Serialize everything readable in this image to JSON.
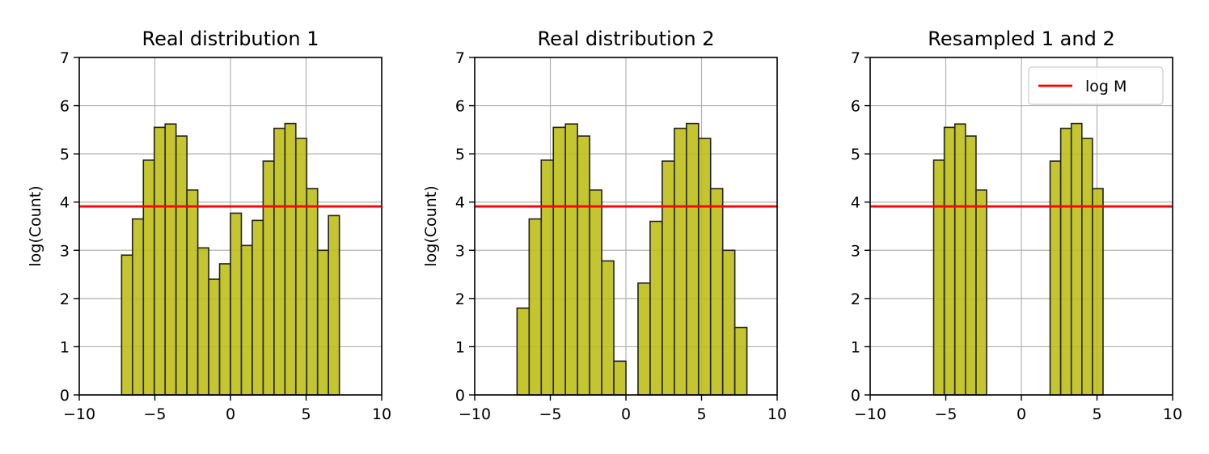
{
  "chart_data": [
    {
      "type": "bar",
      "title": "Real distribution 1",
      "xlabel": "",
      "ylabel": "log(Count)",
      "xlim": [
        -10,
        10
      ],
      "ylim": [
        0,
        7
      ],
      "xticks": [
        -10,
        -5,
        0,
        5,
        10
      ],
      "xtick_labels": [
        "−10",
        "−5",
        "0",
        "5",
        "10"
      ],
      "yticks": [
        0,
        1,
        2,
        3,
        4,
        5,
        6,
        7
      ],
      "ytick_labels": [
        "0",
        "1",
        "2",
        "3",
        "4",
        "5",
        "6",
        "7"
      ],
      "grid": true,
      "bar_color": "#bfbf18",
      "bar_edge_color": "#222222",
      "bins": {
        "start": -7.2,
        "width": 0.72,
        "values": [
          2.9,
          3.65,
          4.87,
          5.55,
          5.62,
          5.37,
          4.25,
          3.05,
          2.4,
          2.72,
          3.77,
          3.1,
          3.62,
          4.85,
          5.53,
          5.63,
          5.32,
          4.28,
          3.0,
          3.72
        ]
      },
      "hline": {
        "y": 3.91,
        "color": "#ff0000"
      }
    },
    {
      "type": "bar",
      "title": "Real distribution 2",
      "xlabel": "",
      "ylabel": "log(Count)",
      "xlim": [
        -10,
        10
      ],
      "ylim": [
        0,
        7
      ],
      "xticks": [
        -10,
        -5,
        0,
        5,
        10
      ],
      "xtick_labels": [
        "−10",
        "−5",
        "0",
        "5",
        "10"
      ],
      "yticks": [
        0,
        1,
        2,
        3,
        4,
        5,
        6,
        7
      ],
      "ytick_labels": [
        "0",
        "1",
        "2",
        "3",
        "4",
        "5",
        "6",
        "7"
      ],
      "grid": true,
      "bar_color": "#bfbf18",
      "bar_edge_color": "#222222",
      "bins": {
        "start": -7.2,
        "width": 0.8,
        "values": [
          1.8,
          3.65,
          4.87,
          5.55,
          5.62,
          5.37,
          4.25,
          2.78,
          0.7,
          0,
          2.32,
          3.6,
          4.85,
          5.53,
          5.63,
          5.32,
          4.28,
          3.0,
          1.4
        ]
      },
      "hline": {
        "y": 3.91,
        "color": "#ff0000"
      }
    },
    {
      "type": "bar",
      "title": "Resampled 1 and 2",
      "xlabel": "",
      "ylabel": "",
      "xlim": [
        -10,
        10
      ],
      "ylim": [
        0,
        7
      ],
      "xticks": [
        -10,
        -5,
        0,
        5,
        10
      ],
      "xtick_labels": [
        "−10",
        "−5",
        "0",
        "5",
        "10"
      ],
      "yticks": [
        0,
        1,
        2,
        3,
        4,
        5,
        6,
        7
      ],
      "ytick_labels": [
        "0",
        "1",
        "2",
        "3",
        "4",
        "5",
        "6",
        "7"
      ],
      "grid": true,
      "bar_color": "#bfbf18",
      "bar_edge_color": "#222222",
      "bins": {
        "start": -5.8,
        "width": 0.7,
        "values": [
          4.87,
          5.55,
          5.62,
          5.37,
          4.25,
          0,
          0,
          0,
          0,
          0,
          0,
          4.85,
          5.53,
          5.63,
          5.32,
          4.28
        ]
      },
      "hline": {
        "y": 3.91,
        "color": "#ff0000"
      },
      "legend": {
        "position": "top-right",
        "entries": [
          {
            "label": "log M",
            "color": "#ff0000"
          }
        ]
      }
    }
  ]
}
